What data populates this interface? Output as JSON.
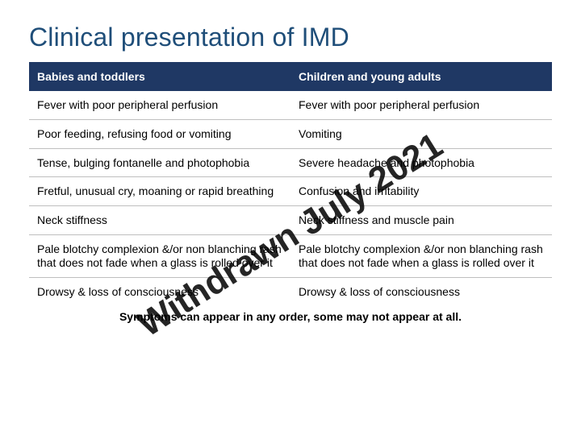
{
  "title": "Clinical presentation of IMD",
  "columns": [
    "Babies and toddlers",
    "Children and young adults"
  ],
  "rows": [
    [
      "Fever with poor peripheral perfusion",
      "Fever with poor peripheral perfusion"
    ],
    [
      "Poor feeding, refusing food or vomiting",
      "Vomiting"
    ],
    [
      "Tense, bulging fontanelle and photophobia",
      "Severe headache and photophobia"
    ],
    [
      "Fretful, unusual cry, moaning or rapid breathing",
      "Confusion and irritability"
    ],
    [
      "Neck stiffness",
      "Neck stiffness and muscle pain"
    ],
    [
      "Pale blotchy complexion &/or non blanching rash that does not fade when a glass is rolled over it",
      "Pale blotchy complexion &/or non blanching rash that does not fade when a glass is rolled over it"
    ],
    [
      "Drowsy & loss of consciousness",
      "Drowsy & loss of consciousness"
    ]
  ],
  "footnote": "Symptoms can appear in any order, some may not appear at all.",
  "watermark": "Withdrawn July 2021",
  "colors": {
    "title": "#1f4e79",
    "header_bg": "#1f3864",
    "header_text": "#ffffff",
    "border": "#bfbfbf",
    "body_text": "#000000"
  }
}
